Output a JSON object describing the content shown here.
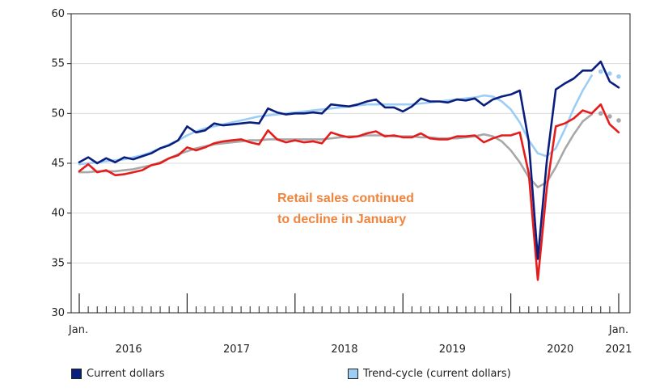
{
  "chart_data": {
    "type": "line",
    "title": "",
    "xlabel": "",
    "ylabel": "",
    "ylim": [
      30,
      60
    ],
    "yticks": [
      30,
      35,
      40,
      45,
      50,
      55,
      60
    ],
    "months_count": 61,
    "x_labels": [
      {
        "id": "jan-start",
        "text": "Jan.",
        "month": 0
      },
      {
        "id": "y2016",
        "text": "2016",
        "month": 5.5
      },
      {
        "id": "y2017",
        "text": "2017",
        "month": 17.5
      },
      {
        "id": "y2018",
        "text": "2018",
        "month": 29.5
      },
      {
        "id": "y2019",
        "text": "2019",
        "month": 41.5
      },
      {
        "id": "y2020",
        "text": "2020",
        "month": 53.5
      },
      {
        "id": "jan-end",
        "text": "Jan.",
        "month": 60
      },
      {
        "id": "y2021",
        "text": "2021",
        "month": 60
      }
    ],
    "annotation": [
      "Retail sales continued",
      "to decline in January"
    ],
    "series": [
      {
        "name": "Current dollars",
        "color": "#0a1f7d",
        "style": "solid",
        "values": [
          45.1,
          45.6,
          45.0,
          45.5,
          45.1,
          45.6,
          45.4,
          45.7,
          46.0,
          46.5,
          46.8,
          47.3,
          48.7,
          48.1,
          48.3,
          49.0,
          48.8,
          48.9,
          49.0,
          49.1,
          49.0,
          50.5,
          50.1,
          49.9,
          50.0,
          50.0,
          50.1,
          50.0,
          50.9,
          50.8,
          50.7,
          50.9,
          51.2,
          51.4,
          50.6,
          50.6,
          50.2,
          50.7,
          51.5,
          51.2,
          51.2,
          51.1,
          51.4,
          51.3,
          51.5,
          50.8,
          51.4,
          51.7,
          51.9,
          52.3,
          47.2,
          35.4,
          45.2,
          52.4,
          53.0,
          53.5,
          54.3,
          54.3,
          55.2,
          53.2,
          52.6
        ]
      },
      {
        "name": "Current dollars (red)",
        "color": "#e41c1c",
        "style": "solid",
        "values": [
          44.2,
          44.9,
          44.1,
          44.3,
          43.8,
          43.9,
          44.1,
          44.3,
          44.8,
          45.0,
          45.5,
          45.8,
          46.6,
          46.3,
          46.6,
          47.0,
          47.2,
          47.3,
          47.4,
          47.1,
          46.9,
          48.3,
          47.4,
          47.1,
          47.3,
          47.1,
          47.2,
          47.0,
          48.1,
          47.8,
          47.6,
          47.7,
          48.0,
          48.2,
          47.7,
          47.8,
          47.6,
          47.6,
          48.0,
          47.5,
          47.4,
          47.4,
          47.7,
          47.7,
          47.8,
          47.1,
          47.5,
          47.8,
          47.8,
          48.1,
          44.0,
          33.3,
          42.5,
          48.7,
          49.0,
          49.5,
          50.3,
          50.0,
          50.9,
          48.9,
          48.1
        ]
      },
      {
        "name": "Trend-cycle (current dollars)",
        "color": "#9ccdf5",
        "style": "solid",
        "values": [
          44.9,
          45.0,
          45.1,
          45.2,
          45.3,
          45.4,
          45.6,
          45.8,
          46.1,
          46.5,
          46.9,
          47.3,
          47.8,
          48.2,
          48.5,
          48.7,
          48.9,
          49.1,
          49.3,
          49.5,
          49.7,
          49.8,
          49.9,
          50.0,
          50.1,
          50.2,
          50.3,
          50.4,
          50.5,
          50.6,
          50.7,
          50.8,
          50.9,
          50.9,
          50.9,
          50.9,
          50.9,
          50.9,
          51.0,
          51.1,
          51.2,
          51.3,
          51.4,
          51.5,
          51.6,
          51.8,
          51.7,
          51.2,
          50.4,
          49.1,
          47.3,
          46.0,
          45.7,
          46.5,
          48.4,
          50.5,
          52.3,
          53.8,
          54.2,
          54.0,
          53.7
        ]
      },
      {
        "name": "Trend-cycle (grey)",
        "color": "#a8a8a8",
        "style": "solid",
        "values": [
          44.1,
          44.1,
          44.2,
          44.2,
          44.2,
          44.3,
          44.4,
          44.6,
          44.8,
          45.1,
          45.5,
          45.9,
          46.2,
          46.5,
          46.7,
          46.9,
          47.0,
          47.1,
          47.2,
          47.3,
          47.3,
          47.4,
          47.4,
          47.4,
          47.4,
          47.4,
          47.4,
          47.4,
          47.5,
          47.6,
          47.7,
          47.7,
          47.8,
          47.8,
          47.8,
          47.7,
          47.7,
          47.7,
          47.6,
          47.6,
          47.5,
          47.5,
          47.5,
          47.6,
          47.7,
          47.9,
          47.7,
          47.2,
          46.3,
          45.1,
          43.6,
          42.6,
          43.1,
          44.6,
          46.4,
          47.9,
          49.2,
          49.9,
          50.0,
          49.7,
          49.3
        ]
      }
    ],
    "legend": [
      {
        "label": "Current dollars",
        "color": "#0a1f7d"
      },
      {
        "label": "Trend-cycle (current dollars)",
        "color": "#9ccdf5"
      }
    ]
  }
}
